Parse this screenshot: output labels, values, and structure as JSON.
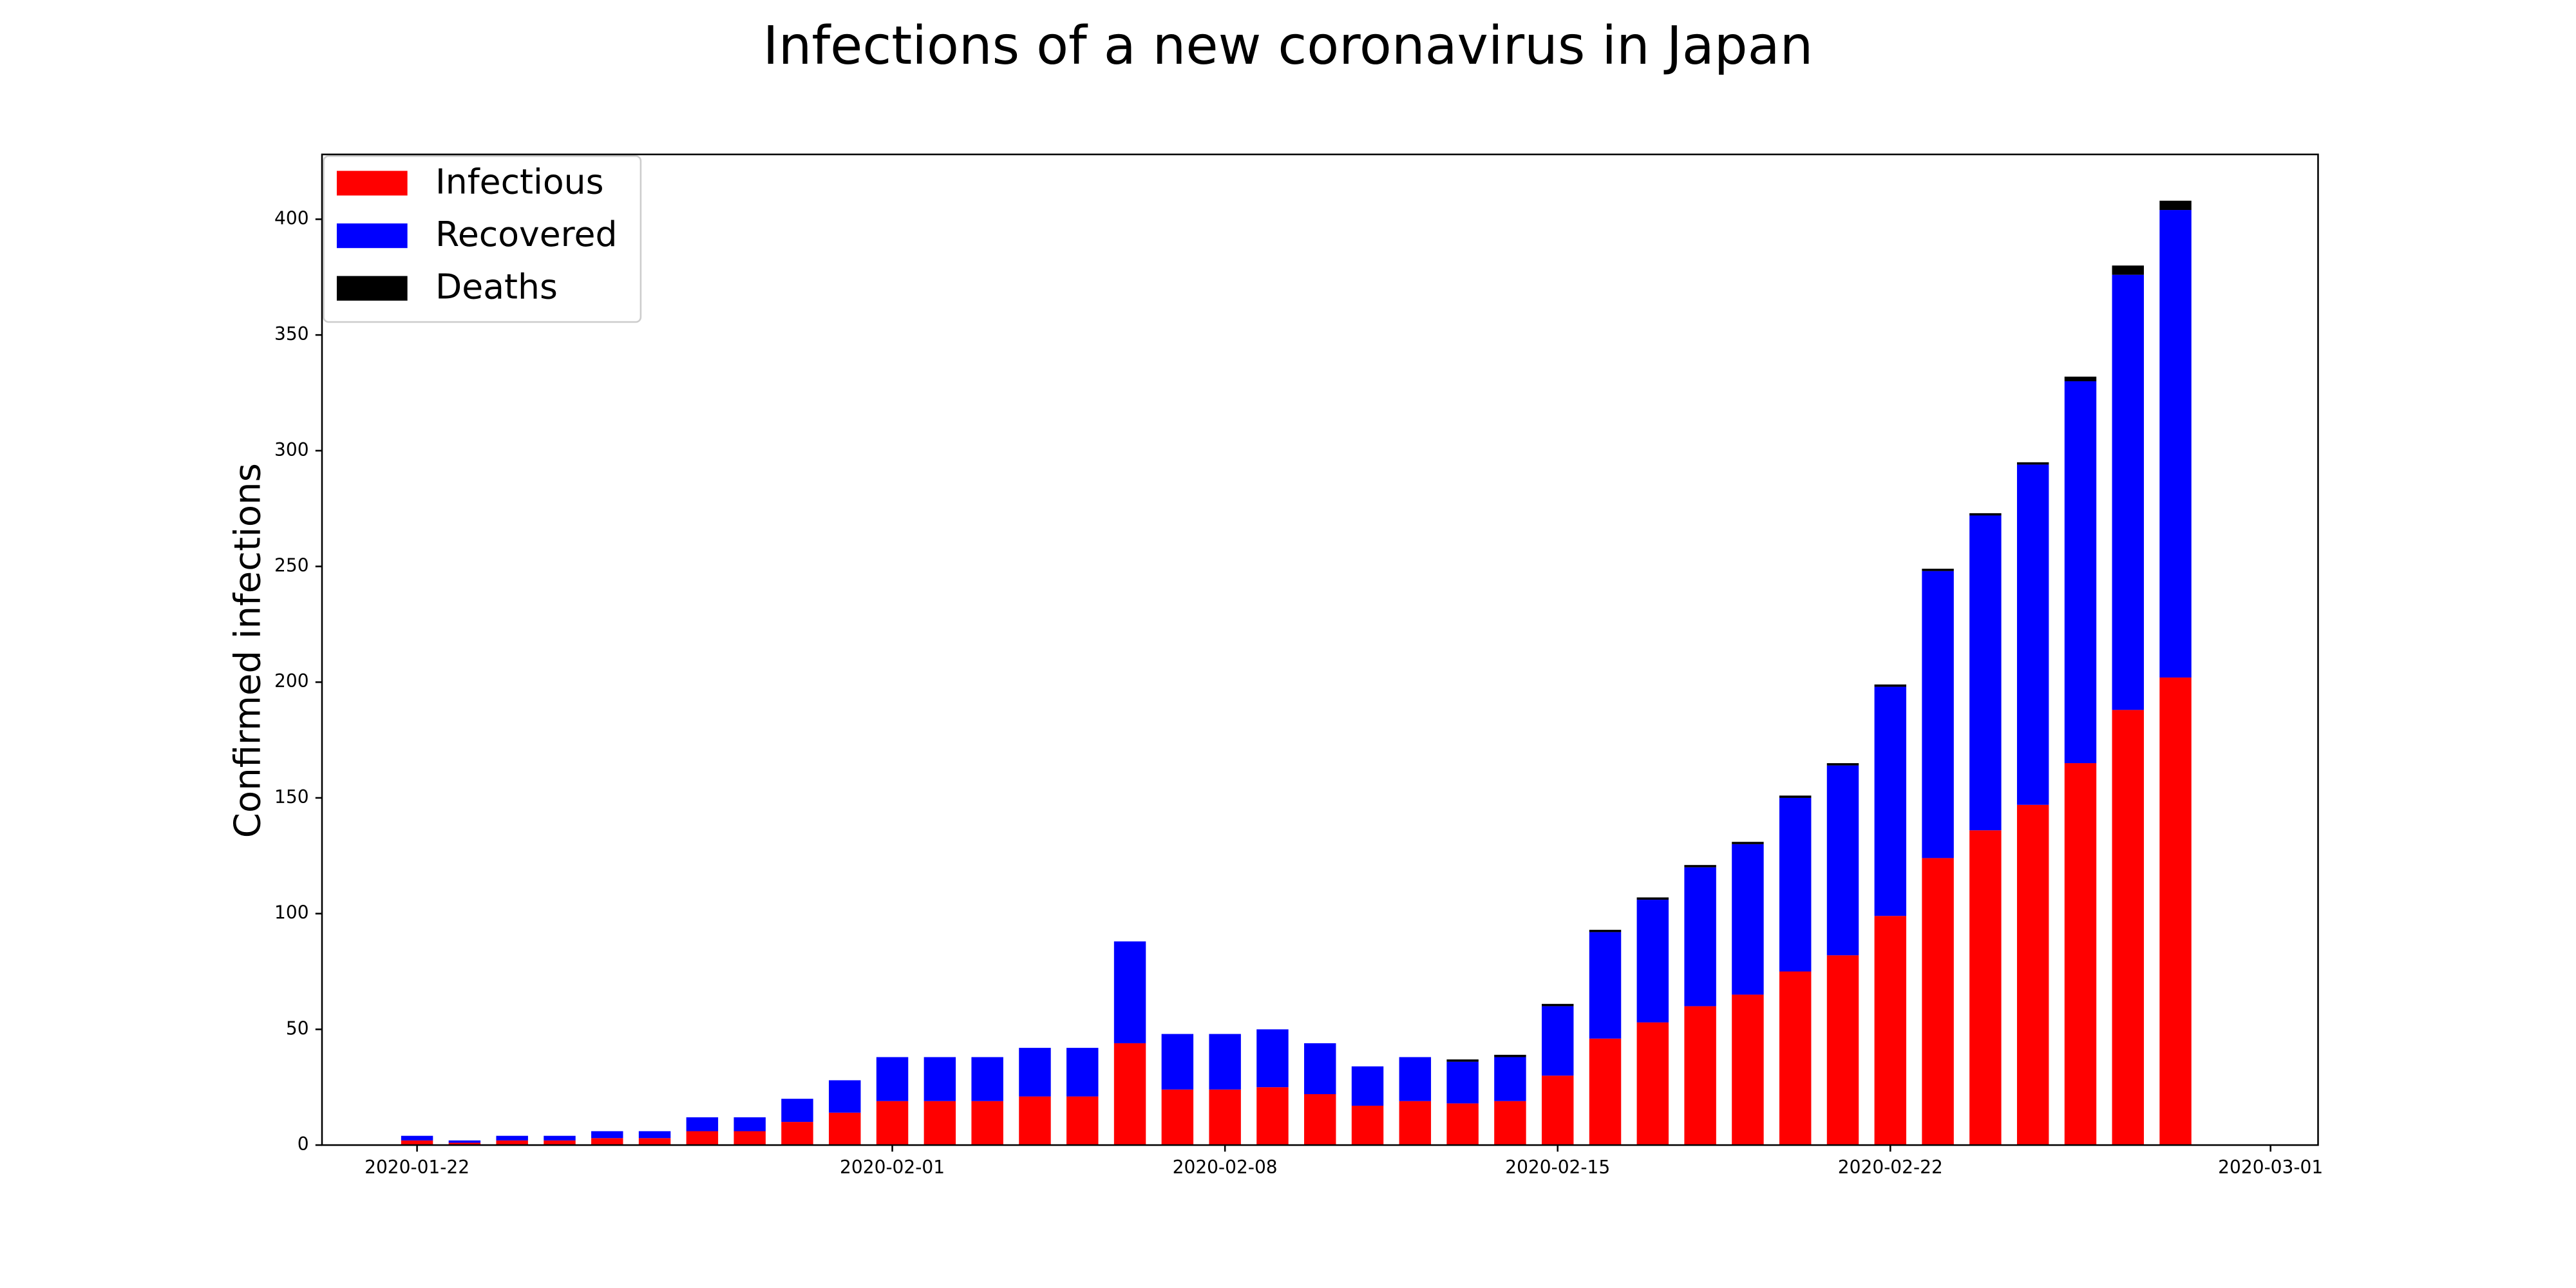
{
  "chart_data": {
    "type": "stacked_bar",
    "title": "Infections of a new coronavirus in Japan",
    "ylabel": "Confirmed infections",
    "x": [
      "2020-01-22",
      "2020-01-23",
      "2020-01-24",
      "2020-01-25",
      "2020-01-26",
      "2020-01-27",
      "2020-01-28",
      "2020-01-29",
      "2020-01-30",
      "2020-01-31",
      "2020-02-01",
      "2020-02-02",
      "2020-02-03",
      "2020-02-04",
      "2020-02-05",
      "2020-02-06",
      "2020-02-07",
      "2020-02-08",
      "2020-02-09",
      "2020-02-10",
      "2020-02-11",
      "2020-02-12",
      "2020-02-13",
      "2020-02-14",
      "2020-02-15",
      "2020-02-16",
      "2020-02-17",
      "2020-02-18",
      "2020-02-19",
      "2020-02-20",
      "2020-02-21",
      "2020-02-22",
      "2020-02-23",
      "2020-02-24",
      "2020-02-25",
      "2020-02-26",
      "2020-02-27",
      "2020-02-28"
    ],
    "series": [
      {
        "name": "Infectious",
        "color": "#ff0000",
        "values": [
          2,
          1,
          2,
          2,
          3,
          3,
          6,
          6,
          10,
          14,
          19,
          19,
          19,
          21,
          21,
          44,
          24,
          24,
          25,
          22,
          17,
          19,
          18,
          19,
          30,
          46,
          53,
          60,
          65,
          75,
          82,
          99,
          124,
          136,
          147,
          165,
          188,
          202
        ]
      },
      {
        "name": "Recovered",
        "color": "#0000ff",
        "values": [
          2,
          1,
          2,
          2,
          3,
          3,
          6,
          6,
          10,
          14,
          19,
          19,
          19,
          21,
          21,
          44,
          24,
          24,
          25,
          22,
          17,
          19,
          18,
          19,
          30,
          46,
          53,
          60,
          65,
          75,
          82,
          99,
          124,
          136,
          147,
          165,
          188,
          202
        ]
      },
      {
        "name": "Deaths",
        "color": "#000000",
        "values": [
          0,
          0,
          0,
          0,
          0,
          0,
          0,
          0,
          0,
          0,
          0,
          0,
          0,
          0,
          0,
          0,
          0,
          0,
          0,
          0,
          0,
          0,
          1,
          1,
          1,
          1,
          1,
          1,
          1,
          1,
          1,
          1,
          1,
          1,
          1,
          2,
          4,
          4
        ]
      }
    ],
    "xlim": [
      "2020-01-20",
      "2020-03-02"
    ],
    "xticks": [
      "2020-01-22",
      "2020-02-01",
      "2020-02-08",
      "2020-02-15",
      "2020-02-22",
      "2020-03-01"
    ],
    "ylim": [
      0,
      428
    ],
    "yticks": [
      0,
      50,
      100,
      150,
      200,
      250,
      300,
      350,
      400
    ],
    "legend": "upper left"
  }
}
